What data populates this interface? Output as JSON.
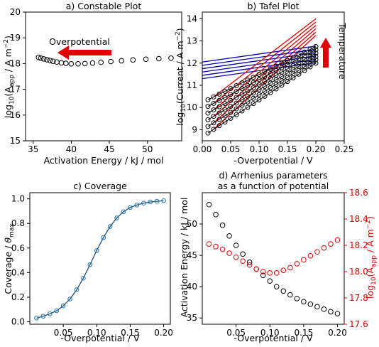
{
  "colors": {
    "marker": "#000000",
    "red": "#e00000",
    "blue": "#0000b0",
    "coverage_line": "#1f4e79",
    "coverage_marker": "#1f77b4",
    "arrow": "#e00000"
  },
  "chart_data": [
    {
      "id": "a",
      "type": "scatter",
      "title": "a) Constable Plot",
      "xlabel": "Activation Energy / kJ / mol",
      "ylabel": "log10(Aapp / A m−2)",
      "xlim": [
        34,
        54.5
      ],
      "ylim": [
        15,
        20
      ],
      "xticks": [
        35,
        40,
        45,
        50
      ],
      "yticks": [
        15,
        16,
        17,
        18,
        19,
        20
      ],
      "annotation": "Overpotential",
      "arrow_direction": "left",
      "x": [
        53.1,
        51.5,
        49.8,
        48.1,
        46.6,
        45.2,
        43.9,
        42.8,
        41.8,
        40.9,
        40.0,
        39.3,
        38.7,
        38.1,
        37.6,
        37.2,
        36.8,
        36.4,
        36.0,
        35.7
      ],
      "y": [
        18.21,
        18.19,
        18.17,
        18.14,
        18.11,
        18.08,
        18.05,
        18.02,
        18.0,
        17.99,
        17.99,
        18.01,
        18.03,
        18.06,
        18.09,
        18.12,
        18.15,
        18.18,
        18.21,
        18.24
      ]
    },
    {
      "id": "b",
      "type": "line",
      "title": "b) Tafel Plot",
      "xlabel": "-Overpotential / V",
      "ylabel": "log10(Current / A  m−2)",
      "xlim": [
        0,
        0.25
      ],
      "ylim": [
        8.5,
        14.3
      ],
      "xticks": [
        0.0,
        0.05,
        0.1,
        0.15,
        0.2,
        0.25
      ],
      "yticks": [
        9,
        10,
        11,
        12,
        13,
        14
      ],
      "annotation": "Temperature",
      "arrow_direction": "up",
      "marker_x": [
        0.01,
        0.02,
        0.03,
        0.04,
        0.05,
        0.06,
        0.07,
        0.08,
        0.09,
        0.1,
        0.11,
        0.12,
        0.13,
        0.14,
        0.15,
        0.16,
        0.17,
        0.18,
        0.19,
        0.2
      ],
      "series": [
        {
          "y0": 8.85,
          "y1": 12.0,
          "red": [
            0.02,
            13.25
          ],
          "blue": [
            0.0,
            11.3
          ]
        },
        {
          "y0": 9.15,
          "y1": 12.15,
          "red": [
            0.02,
            13.4
          ],
          "blue": [
            0.0,
            11.45
          ]
        },
        {
          "y0": 9.45,
          "y1": 12.3,
          "red": [
            0.02,
            13.55
          ],
          "blue": [
            0.0,
            11.6
          ]
        },
        {
          "y0": 9.75,
          "y1": 12.45,
          "red": [
            0.02,
            13.7
          ],
          "blue": [
            0.0,
            11.75
          ]
        },
        {
          "y0": 10.05,
          "y1": 12.6,
          "red": [
            0.02,
            13.85
          ],
          "blue": [
            0.0,
            11.9
          ]
        },
        {
          "y0": 10.35,
          "y1": 12.75,
          "red": [
            0.02,
            14.0
          ],
          "blue": [
            0.0,
            12.05
          ]
        }
      ]
    },
    {
      "id": "c",
      "type": "line",
      "title": "c) Coverage",
      "xlabel": "-Overpotential / V",
      "ylabel": "Coverage / θmax",
      "xlim": [
        0,
        0.21
      ],
      "ylim": [
        -0.02,
        1.05
      ],
      "xticks": [
        0.05,
        0.1,
        0.15,
        0.2
      ],
      "yticks": [
        0.0,
        0.2,
        0.4,
        0.6,
        0.8,
        1.0
      ],
      "x": [
        0.01,
        0.02,
        0.03,
        0.04,
        0.05,
        0.06,
        0.07,
        0.08,
        0.09,
        0.1,
        0.11,
        0.12,
        0.13,
        0.14,
        0.15,
        0.16,
        0.17,
        0.18,
        0.19,
        0.2
      ],
      "y": [
        0.03,
        0.045,
        0.065,
        0.09,
        0.13,
        0.185,
        0.26,
        0.355,
        0.465,
        0.58,
        0.685,
        0.775,
        0.845,
        0.895,
        0.93,
        0.95,
        0.965,
        0.975,
        0.98,
        0.985
      ]
    },
    {
      "id": "d",
      "type": "scatter",
      "title": "d) Arrhenius parameters",
      "subtitle": "as a function of potential",
      "xlabel": "-Overpotential / V",
      "ylabel": "Activation Energy / kJ / mol",
      "ylabel_right": "log10(Aapp / A m−2)",
      "xlim": [
        0,
        0.21
      ],
      "ylim": [
        34,
        55
      ],
      "ylim_right": [
        17.6,
        18.6
      ],
      "xticks": [
        0.05,
        0.1,
        0.15,
        0.2
      ],
      "yticks": [
        35,
        40,
        45,
        50
      ],
      "yticks_right": [
        17.6,
        17.8,
        18.0,
        18.2,
        18.4,
        18.6
      ],
      "x": [
        0.01,
        0.02,
        0.03,
        0.04,
        0.05,
        0.06,
        0.07,
        0.08,
        0.09,
        0.1,
        0.11,
        0.12,
        0.13,
        0.14,
        0.15,
        0.16,
        0.17,
        0.18,
        0.19,
        0.2
      ],
      "energy": [
        53.1,
        51.5,
        49.8,
        48.1,
        46.6,
        45.2,
        43.9,
        42.8,
        41.8,
        40.9,
        40.0,
        39.3,
        38.7,
        38.1,
        37.6,
        37.2,
        36.8,
        36.4,
        36.0,
        35.7
      ],
      "logA": [
        18.21,
        18.19,
        18.17,
        18.14,
        18.11,
        18.08,
        18.05,
        18.02,
        18.0,
        17.99,
        17.99,
        18.01,
        18.03,
        18.06,
        18.09,
        18.12,
        18.15,
        18.18,
        18.21,
        18.24
      ]
    }
  ]
}
